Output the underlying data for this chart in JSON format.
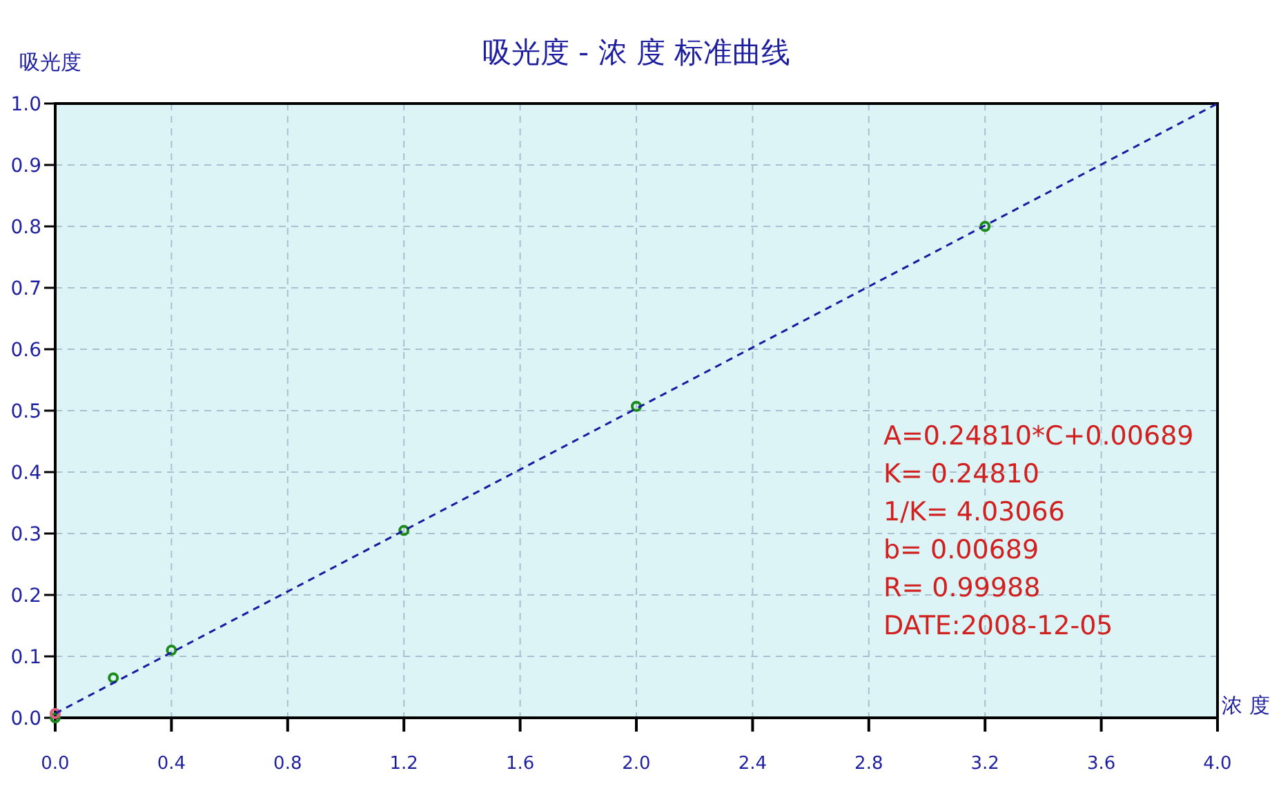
{
  "chart_data": {
    "type": "scatter",
    "title": "吸光度 - 浓 度 标准曲线",
    "xlabel": "浓 度",
    "ylabel": "吸光度",
    "series": [
      {
        "type": "scatter",
        "marker": "circle",
        "color": "#1a8a1a",
        "x": [
          0,
          0.2,
          0.4,
          1.2,
          2.0,
          3.2
        ],
        "values": [
          0,
          0.065,
          0.11,
          0.305,
          0.507,
          0.8
        ]
      },
      {
        "type": "scatter",
        "marker": "circle",
        "color": "#e06080",
        "x": [
          0
        ],
        "values": [
          0.007
        ]
      },
      {
        "type": "line",
        "color": "#1a1aa0",
        "line_style": "dashed",
        "x": [
          0,
          4.0
        ],
        "values": [
          0.007,
          1.0
        ]
      }
    ],
    "xlim": [
      0,
      4.0
    ],
    "ylim": [
      0,
      1.0
    ],
    "xticks": [
      {
        "value": 0,
        "label": "0.0"
      },
      0.4,
      0.8,
      1.2,
      1.6,
      {
        "value": 2.0,
        "label": "2.0"
      },
      2.4,
      2.8,
      3.2,
      3.6,
      {
        "value": 4.0,
        "label": "4.0"
      }
    ],
    "yticks": [
      {
        "value": 0,
        "label": "0.0"
      },
      0.1,
      0.2,
      0.3,
      0.4,
      0.5,
      0.6,
      0.7,
      0.8,
      0.9,
      {
        "value": 1.0,
        "label": "1.0"
      }
    ],
    "grid": true,
    "annotations": [
      "A=0.24810*C+0.00689",
      "K= 0.24810",
      "1/K= 4.03066",
      "b= 0.00689",
      "R= 0.99988",
      "DATE:2008-12-05"
    ]
  }
}
